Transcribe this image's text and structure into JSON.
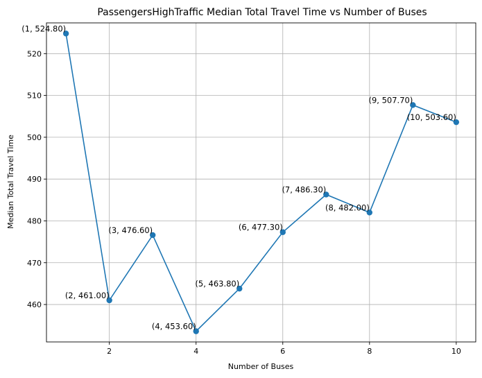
{
  "chart_data": {
    "type": "line",
    "title": "PassengersHighTraffic Median Total Travel Time vs Number of Buses",
    "xlabel": "Number of Buses",
    "ylabel": "Median Total Travel Time",
    "xlim": [
      0.55,
      10.45
    ],
    "ylim": [
      451.05,
      527.35
    ],
    "xticks": [
      2,
      4,
      6,
      8,
      10
    ],
    "yticks": [
      460,
      470,
      480,
      490,
      500,
      510,
      520
    ],
    "grid": true,
    "line_color": "#1f77b4",
    "marker": "circle",
    "series": [
      {
        "x": [
          1,
          2,
          3,
          4,
          5,
          6,
          7,
          8,
          9,
          10
        ],
        "values": [
          524.8,
          461.0,
          476.6,
          453.6,
          463.8,
          477.3,
          486.3,
          482.0,
          507.7,
          503.6
        ],
        "labels": [
          "(1, 524.80)",
          "(2, 461.00)",
          "(3, 476.60)",
          "(4, 453.60)",
          "(5, 463.80)",
          "(6, 477.30)",
          "(7, 486.30)",
          "(8, 482.00)",
          "(9, 507.70)",
          "(10, 503.60)"
        ]
      }
    ]
  }
}
